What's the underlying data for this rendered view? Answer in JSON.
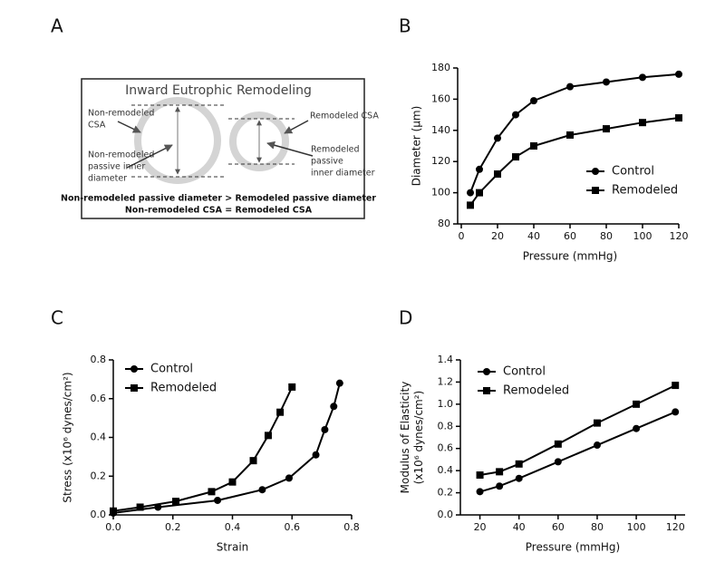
{
  "diagram": {
    "label": "A",
    "title": "Inward Eutrophic Remodeling",
    "left_labels": [
      [
        "Non-remodeled",
        "CSA"
      ],
      [
        "Non-remodeled",
        "passive inner",
        "diameter"
      ]
    ],
    "right_labels": [
      [
        "Remodeled CSA"
      ],
      [
        "Remodeled",
        "passive",
        "inner diameter"
      ]
    ],
    "footer": [
      "Non-remodeled passive diameter > Remodeled passive diameter",
      "Non-remodeled CSA = Remodeled CSA"
    ]
  },
  "chart_data": [
    {
      "type": "line",
      "label": "B",
      "xlabel": "Pressure (mmHg)",
      "ylabel": [
        "Diameter (μm)"
      ],
      "xlim": [
        0,
        120
      ],
      "ylim": [
        80,
        180
      ],
      "xticks": [
        0,
        20,
        40,
        60,
        80,
        100,
        120
      ],
      "yticks": [
        80,
        100,
        120,
        140,
        160,
        180
      ],
      "series": [
        {
          "name": "Control",
          "color": "#000000",
          "marker": "circle",
          "x": [
            5,
            10,
            20,
            30,
            40,
            60,
            80,
            100,
            120
          ],
          "values": [
            100,
            115,
            135,
            150,
            159,
            168,
            171,
            174,
            176
          ]
        },
        {
          "name": "Remodeled",
          "color": "#000000",
          "marker": "square",
          "x": [
            5,
            10,
            20,
            30,
            40,
            60,
            80,
            100,
            120
          ],
          "values": [
            92,
            100,
            112,
            123,
            130,
            137,
            141,
            145,
            148
          ]
        }
      ]
    },
    {
      "type": "line",
      "label": "C",
      "xlabel": "Strain",
      "ylabel": [
        "Stress (x10⁶ dynes/cm²)"
      ],
      "xlim": [
        0,
        0.8
      ],
      "ylim": [
        0,
        0.8
      ],
      "xticks": [
        {
          "value": 0,
          "label": "0.0"
        },
        0.2,
        0.4,
        0.6,
        0.8
      ],
      "yticks": [
        {
          "value": 0,
          "label": "0.0"
        },
        0.2,
        0.4,
        0.6,
        0.8
      ],
      "series": [
        {
          "name": "Control",
          "color": "#000000",
          "marker": "circle",
          "x": [
            0,
            0.15,
            0.35,
            0.5,
            0.59,
            0.68,
            0.71,
            0.74,
            0.76
          ],
          "values": [
            0.01,
            0.04,
            0.075,
            0.13,
            0.19,
            0.31,
            0.44,
            0.56,
            0.68
          ]
        },
        {
          "name": "Remodeled",
          "color": "#000000",
          "marker": "square",
          "x": [
            0,
            0.09,
            0.21,
            0.33,
            0.4,
            0.47,
            0.52,
            0.56,
            0.6
          ],
          "values": [
            0.02,
            0.04,
            0.07,
            0.12,
            0.17,
            0.28,
            0.41,
            0.53,
            0.66
          ]
        }
      ]
    },
    {
      "type": "line",
      "label": "D",
      "xlabel": "Pressure (mmHg)",
      "ylabel": [
        "Modulus of Elasticity",
        "(x10⁶ dynes/cm²)"
      ],
      "xlim": [
        10,
        125
      ],
      "ylim": [
        0,
        1.4
      ],
      "xticks": [
        20,
        40,
        60,
        80,
        100,
        120
      ],
      "yticks": [
        {
          "value": 0,
          "label": "0.0"
        },
        0.2,
        0.4,
        0.6,
        0.8,
        {
          "value": 1,
          "label": "1.0"
        },
        1.2,
        1.4
      ],
      "series": [
        {
          "name": "Control",
          "color": "#000000",
          "marker": "circle",
          "x": [
            20,
            30,
            40,
            60,
            80,
            100,
            120
          ],
          "values": [
            0.21,
            0.26,
            0.33,
            0.48,
            0.63,
            0.78,
            0.93
          ]
        },
        {
          "name": "Remodeled",
          "color": "#000000",
          "marker": "square",
          "x": [
            20,
            30,
            40,
            60,
            80,
            100,
            120
          ],
          "values": [
            0.36,
            0.39,
            0.46,
            0.64,
            0.83,
            1.0,
            1.17
          ]
        }
      ]
    }
  ]
}
